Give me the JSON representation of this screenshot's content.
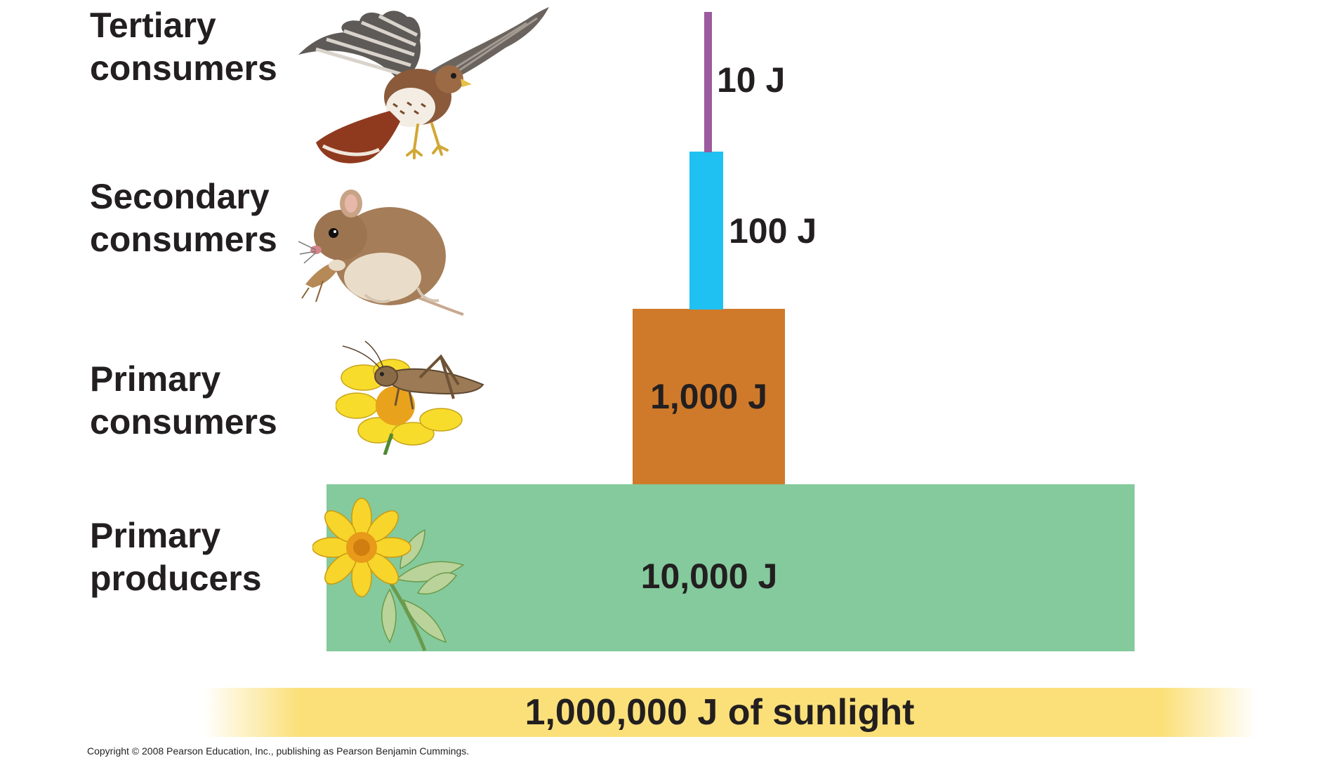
{
  "levels": [
    {
      "line1": "Tertiary",
      "line2": "consumers",
      "value": "10 J",
      "organism": "hawk",
      "color": "#9b5b9e"
    },
    {
      "line1": "Secondary",
      "line2": "consumers",
      "value": "100 J",
      "organism": "mouse",
      "color": "#1ec1f2"
    },
    {
      "line1": "Primary",
      "line2": "consumers",
      "value": "1,000 J",
      "organism": "grasshopper",
      "color": "#cf7a2a"
    },
    {
      "line1": "Primary",
      "line2": "producers",
      "value": "10,000 J",
      "organism": "flowering plant",
      "color": "#84ca9c"
    }
  ],
  "sunlight": {
    "label": "1,000,000 J of sunlight",
    "color": "#fbe07a"
  },
  "copyright": "Copyright © 2008 Pearson Education, Inc., publishing as Pearson Benjamin Cummings."
}
